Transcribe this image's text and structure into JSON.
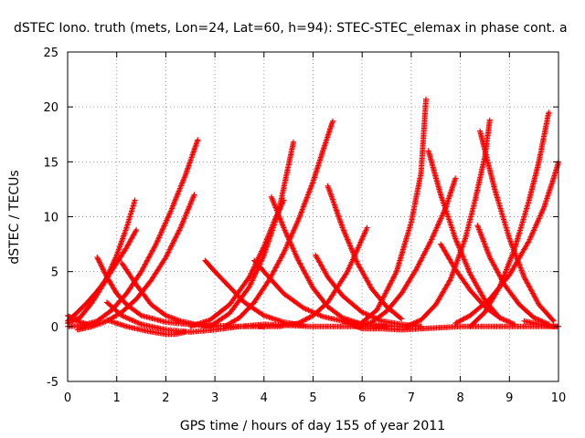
{
  "chart_data": {
    "type": "scatter",
    "title": "dSTEC Iono. truth (mets, Lon=24, Lat=60, h=94): STEC-STEC_elemax in phase cont. a",
    "xlabel": "GPS time / hours of day 155 of year 2011",
    "ylabel": "dSTEC  / TECUs",
    "xlim": [
      0,
      10
    ],
    "ylim": [
      -5,
      25
    ],
    "xticks": [
      "0",
      "1",
      "2",
      "3",
      "4",
      "5",
      "6",
      "7",
      "8",
      "9",
      "10"
    ],
    "yticks": [
      "-5",
      "0",
      "5",
      "10",
      "15",
      "20",
      "25"
    ],
    "grid": true,
    "marker": "+",
    "color": "#ff0000",
    "series": [
      {
        "x": [
          0.0,
          0.25,
          0.5,
          0.75,
          1.0,
          1.2,
          1.37
        ],
        "y": [
          0.3,
          0.8,
          2.2,
          4.0,
          6.5,
          9.0,
          11.5
        ]
      },
      {
        "x": [
          0.0,
          0.2,
          0.4,
          0.6,
          0.8,
          1.0,
          1.2,
          1.4
        ],
        "y": [
          0.5,
          1.3,
          2.2,
          3.2,
          4.4,
          5.8,
          7.2,
          8.8
        ]
      },
      {
        "x": [
          0.0,
          0.3,
          0.6,
          0.9,
          1.2,
          1.5,
          1.8,
          2.1,
          2.4,
          2.65
        ],
        "y": [
          0.0,
          0.1,
          0.5,
          1.5,
          3.0,
          5.0,
          7.5,
          10.5,
          13.8,
          17.0
        ]
      },
      {
        "x": [
          0.2,
          0.5,
          0.8,
          1.1,
          1.4,
          1.7,
          2.0,
          2.3,
          2.58
        ],
        "y": [
          -0.3,
          0.0,
          0.5,
          1.3,
          2.5,
          4.2,
          6.3,
          9.0,
          12.0
        ]
      },
      {
        "x": [
          0.0,
          0.2,
          0.4
        ],
        "y": [
          1.0,
          0.5,
          0.2
        ]
      },
      {
        "x": [
          0.6,
          0.8,
          1.0,
          1.2,
          1.5,
          2.0,
          2.5,
          3.0,
          3.5,
          4.0
        ],
        "y": [
          6.3,
          4.5,
          3.0,
          2.0,
          1.0,
          0.4,
          0.2,
          0.1,
          0.0,
          0.0
        ]
      },
      {
        "x": [
          1.1,
          1.4,
          1.7,
          2.0,
          2.3,
          2.7,
          3.0
        ],
        "y": [
          5.8,
          3.8,
          2.0,
          1.0,
          0.5,
          0.1,
          0.0
        ]
      },
      {
        "x": [
          0.8,
          1.1,
          1.5,
          2.0,
          2.5,
          3.0,
          3.5,
          4.0,
          4.5,
          5.0,
          5.5,
          6.0,
          6.5
        ],
        "y": [
          2.2,
          1.0,
          0.2,
          -0.3,
          -0.5,
          -0.3,
          0.0,
          0.2,
          0.1,
          0.0,
          0.0,
          0.0,
          0.0
        ]
      },
      {
        "x": [
          0.8,
          1.2,
          1.6,
          2.0,
          2.2,
          2.4
        ],
        "y": [
          0.6,
          0.0,
          -0.4,
          -0.7,
          -0.7,
          -0.5
        ]
      },
      {
        "x": [
          2.8,
          3.0,
          3.3,
          3.6,
          4.0,
          4.4,
          4.8
        ],
        "y": [
          6.0,
          5.0,
          3.6,
          2.2,
          1.0,
          0.4,
          0.1
        ]
      },
      {
        "x": [
          2.5,
          2.9,
          3.3,
          3.7,
          4.0,
          4.2,
          4.4
        ],
        "y": [
          0.0,
          0.6,
          2.0,
          4.5,
          7.3,
          9.5,
          11.5
        ]
      },
      {
        "x": [
          2.9,
          3.3,
          3.7,
          4.0,
          4.3,
          4.6
        ],
        "y": [
          0.0,
          1.2,
          3.6,
          6.5,
          10.5,
          16.8
        ]
      },
      {
        "x": [
          3.2,
          3.5,
          3.8,
          4.1,
          4.4,
          4.7,
          5.0,
          5.2,
          5.4
        ],
        "y": [
          0.0,
          0.8,
          2.2,
          4.2,
          6.7,
          9.7,
          13.2,
          16.0,
          18.7
        ]
      },
      {
        "x": [
          3.8,
          4.1,
          4.4,
          4.8,
          5.2,
          5.6,
          6.0,
          6.4,
          6.8,
          7.2
        ],
        "y": [
          6.0,
          4.5,
          3.0,
          1.7,
          0.9,
          0.5,
          0.2,
          0.1,
          0.0,
          0.0
        ]
      },
      {
        "x": [
          4.15,
          4.4,
          4.7,
          5.0,
          5.3,
          5.6,
          6.0
        ],
        "y": [
          11.8,
          9.0,
          6.0,
          3.5,
          1.8,
          0.8,
          0.2
        ]
      },
      {
        "x": [
          3.9,
          4.3,
          4.7,
          5.0,
          5.3,
          5.7,
          6.1
        ],
        "y": [
          0.0,
          0.0,
          0.3,
          1.0,
          2.2,
          5.0,
          9.0
        ]
      },
      {
        "x": [
          5.05,
          5.3,
          5.6,
          6.0,
          6.4,
          6.8,
          7.2
        ],
        "y": [
          6.5,
          4.5,
          2.8,
          1.3,
          0.5,
          0.2,
          0.0
        ]
      },
      {
        "x": [
          5.3,
          5.6,
          5.9,
          6.2,
          6.5,
          6.8
        ],
        "y": [
          12.8,
          9.0,
          5.8,
          3.4,
          1.8,
          0.7
        ]
      },
      {
        "x": [
          5.6,
          6.0,
          6.4,
          6.8,
          7.2,
          7.6,
          8.0,
          8.4,
          8.8,
          9.2,
          9.6,
          10.0
        ],
        "y": [
          0.5,
          -0.2,
          -0.2,
          -0.3,
          -0.2,
          -0.1,
          0.0,
          0.0,
          0.0,
          0.0,
          0.0,
          0.0
        ]
      },
      {
        "x": [
          5.9,
          6.3,
          6.7,
          7.0,
          7.2,
          7.3
        ],
        "y": [
          0.0,
          1.5,
          5.0,
          9.5,
          14.0,
          20.7
        ]
      },
      {
        "x": [
          5.9,
          6.2,
          6.5,
          6.8,
          7.1,
          7.4,
          7.7,
          7.9
        ],
        "y": [
          0.0,
          0.4,
          1.4,
          3.0,
          5.2,
          7.8,
          10.8,
          13.5
        ]
      },
      {
        "x": [
          7.35,
          7.6,
          7.9,
          8.2,
          8.5,
          8.8
        ],
        "y": [
          16.0,
          12.0,
          8.0,
          4.8,
          2.4,
          0.8
        ]
      },
      {
        "x": [
          7.6,
          7.9,
          8.2,
          8.5,
          8.8,
          9.1
        ],
        "y": [
          7.5,
          5.2,
          3.3,
          1.8,
          0.8,
          0.2
        ]
      },
      {
        "x": [
          6.9,
          7.2,
          7.5,
          7.8,
          8.1,
          8.3,
          8.5,
          8.6
        ],
        "y": [
          0.0,
          0.6,
          2.0,
          4.3,
          8.0,
          11.5,
          15.5,
          18.8
        ]
      },
      {
        "x": [
          8.35,
          8.6,
          8.9,
          9.2,
          9.5,
          9.8
        ],
        "y": [
          9.2,
          6.3,
          3.8,
          2.0,
          0.8,
          0.2
        ]
      },
      {
        "x": [
          8.4,
          8.7,
          9.0,
          9.3,
          9.6,
          9.9
        ],
        "y": [
          17.8,
          12.5,
          8.0,
          4.5,
          2.0,
          0.5
        ]
      },
      {
        "x": [
          7.9,
          8.2,
          8.6,
          9.0,
          9.4,
          9.7,
          9.9,
          10.0
        ],
        "y": [
          0.3,
          1.0,
          2.5,
          4.7,
          7.8,
          10.8,
          13.5,
          15.0
        ]
      },
      {
        "x": [
          8.2,
          8.5,
          8.8,
          9.1,
          9.4,
          9.6,
          9.8
        ],
        "y": [
          0.0,
          1.3,
          3.6,
          7.0,
          11.5,
          15.0,
          19.5
        ]
      },
      {
        "x": [
          9.3,
          9.6,
          9.9,
          10.0
        ],
        "y": [
          0.5,
          0.2,
          0.0,
          0.0
        ]
      }
    ]
  }
}
